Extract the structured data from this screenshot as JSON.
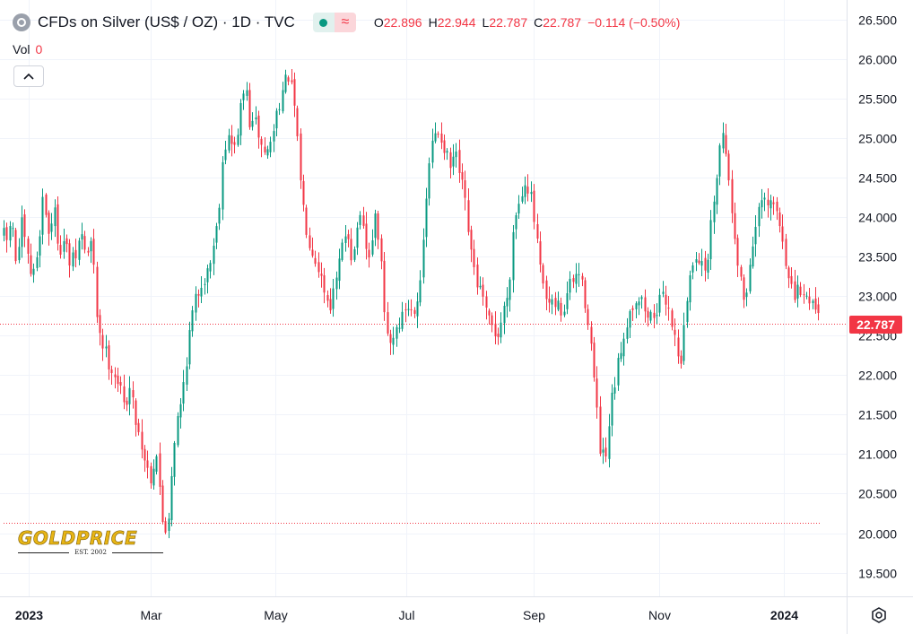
{
  "header": {
    "symbol_title": "CFDs on Silver (US$ / OZ) · 1D · TVC",
    "market_status_icon": "green-dot-icon",
    "delay_icon": "wave-icon",
    "open_label": "O",
    "open_value": "22.896",
    "high_label": "H",
    "high_value": "22.944",
    "low_label": "L",
    "low_value": "22.787",
    "close_label": "C",
    "close_value": "22.787",
    "change": "−0.114 (−0.50%)"
  },
  "volume": {
    "label": "Vol",
    "value": "0"
  },
  "collapse_icon": "chevron-up-icon",
  "logo": {
    "text": "GOLDPRICE",
    "tagline": "EST. 2002"
  },
  "price_tag": "22.787",
  "settings_icon": "gear-icon",
  "colors": {
    "up": "#089981",
    "down": "#f23645",
    "grid": "#f0f3fa",
    "text": "#131722"
  },
  "chart_data": {
    "type": "candlestick",
    "title": "CFDs on Silver (US$ / OZ) · 1D · TVC",
    "x_labels": [
      "2023",
      "Mar",
      "May",
      "Jul",
      "Sep",
      "Nov",
      "2024"
    ],
    "y_ticks": [
      "26.500",
      "26.000",
      "25.500",
      "25.000",
      "24.500",
      "24.000",
      "23.500",
      "23.000",
      "22.500",
      "22.000",
      "21.500",
      "21.000",
      "20.500",
      "20.000",
      "19.500"
    ],
    "ylim": [
      19.2,
      26.75
    ],
    "last_price": 22.787,
    "reference_level": 20.22,
    "grid": true,
    "period": "2022-12-29 to 2024-01-11 (approx.)",
    "path": [
      [
        0,
        24.1
      ],
      [
        6,
        23.6
      ],
      [
        12,
        24.0
      ],
      [
        18,
        23.4
      ],
      [
        24,
        23.9
      ],
      [
        30,
        23.5
      ],
      [
        36,
        23.2
      ],
      [
        42,
        23.6
      ],
      [
        48,
        24.3
      ],
      [
        54,
        23.8
      ],
      [
        60,
        24.1
      ],
      [
        66,
        23.6
      ],
      [
        72,
        23.7
      ],
      [
        78,
        23.4
      ],
      [
        84,
        23.5
      ],
      [
        90,
        23.8
      ],
      [
        96,
        23.5
      ],
      [
        102,
        23.7
      ],
      [
        108,
        22.7
      ],
      [
        114,
        22.4
      ],
      [
        120,
        22.2
      ],
      [
        126,
        22.05
      ],
      [
        132,
        21.9
      ],
      [
        138,
        21.6
      ],
      [
        144,
        21.85
      ],
      [
        150,
        21.5
      ],
      [
        156,
        21.2
      ],
      [
        162,
        20.9
      ],
      [
        168,
        20.7
      ],
      [
        174,
        21.05
      ],
      [
        180,
        20.2
      ],
      [
        186,
        20.0
      ],
      [
        190,
        20.6
      ],
      [
        195,
        21.3
      ],
      [
        201,
        21.6
      ],
      [
        207,
        22.15
      ],
      [
        213,
        22.7
      ],
      [
        219,
        23.0
      ],
      [
        225,
        23.2
      ],
      [
        231,
        23.3
      ],
      [
        237,
        23.6
      ],
      [
        243,
        24.0
      ],
      [
        249,
        24.9
      ],
      [
        255,
        25.0
      ],
      [
        261,
        24.85
      ],
      [
        267,
        25.3
      ],
      [
        273,
        25.7
      ],
      [
        279,
        25.1
      ],
      [
        285,
        25.2
      ],
      [
        291,
        24.9
      ],
      [
        297,
        24.8
      ],
      [
        303,
        25.0
      ],
      [
        309,
        25.4
      ],
      [
        315,
        25.6
      ],
      [
        321,
        25.8
      ],
      [
        327,
        25.5
      ],
      [
        333,
        24.7
      ],
      [
        339,
        24.0
      ],
      [
        345,
        23.7
      ],
      [
        351,
        23.5
      ],
      [
        357,
        23.3
      ],
      [
        363,
        23.0
      ],
      [
        369,
        22.9
      ],
      [
        375,
        23.2
      ],
      [
        381,
        23.6
      ],
      [
        387,
        23.9
      ],
      [
        393,
        23.4
      ],
      [
        399,
        24.0
      ],
      [
        405,
        23.8
      ],
      [
        411,
        23.4
      ],
      [
        417,
        24.0
      ],
      [
        423,
        23.7
      ],
      [
        429,
        22.6
      ],
      [
        435,
        22.4
      ],
      [
        441,
        22.6
      ],
      [
        447,
        22.7
      ],
      [
        453,
        22.9
      ],
      [
        459,
        22.8
      ],
      [
        465,
        23.0
      ],
      [
        471,
        23.5
      ],
      [
        477,
        24.6
      ],
      [
        483,
        25.0
      ],
      [
        489,
        25.1
      ],
      [
        495,
        24.9
      ],
      [
        501,
        24.6
      ],
      [
        507,
        24.8
      ],
      [
        513,
        24.5
      ],
      [
        519,
        24.1
      ],
      [
        525,
        23.5
      ],
      [
        531,
        23.2
      ],
      [
        537,
        23.0
      ],
      [
        543,
        22.7
      ],
      [
        549,
        22.6
      ],
      [
        555,
        22.5
      ],
      [
        561,
        22.8
      ],
      [
        567,
        23.1
      ],
      [
        573,
        24.0
      ],
      [
        579,
        24.2
      ],
      [
        585,
        24.5
      ],
      [
        591,
        24.3
      ],
      [
        597,
        23.8
      ],
      [
        603,
        23.2
      ],
      [
        609,
        22.9
      ],
      [
        615,
        22.85
      ],
      [
        621,
        22.9
      ],
      [
        627,
        22.75
      ],
      [
        633,
        23.1
      ],
      [
        639,
        23.2
      ],
      [
        645,
        23.3
      ],
      [
        651,
        23.0
      ],
      [
        657,
        22.6
      ],
      [
        663,
        21.8
      ],
      [
        669,
        21.0
      ],
      [
        675,
        20.9
      ],
      [
        681,
        21.6
      ],
      [
        687,
        22.0
      ],
      [
        693,
        22.4
      ],
      [
        699,
        22.7
      ],
      [
        705,
        22.9
      ],
      [
        711,
        23.0
      ],
      [
        717,
        22.9
      ],
      [
        723,
        22.7
      ],
      [
        729,
        22.8
      ],
      [
        735,
        22.9
      ],
      [
        741,
        23.0
      ],
      [
        747,
        22.8
      ],
      [
        753,
        22.4
      ],
      [
        759,
        22.2
      ],
      [
        765,
        22.9
      ],
      [
        771,
        23.4
      ],
      [
        777,
        23.6
      ],
      [
        783,
        23.3
      ],
      [
        789,
        23.5
      ],
      [
        795,
        24.2
      ],
      [
        801,
        24.8
      ],
      [
        807,
        25.2
      ],
      [
        813,
        24.3
      ],
      [
        819,
        23.8
      ],
      [
        825,
        23.2
      ],
      [
        831,
        22.9
      ],
      [
        837,
        23.6
      ],
      [
        843,
        23.9
      ],
      [
        849,
        24.2
      ],
      [
        855,
        24.1
      ],
      [
        861,
        24.2
      ],
      [
        867,
        24.0
      ],
      [
        873,
        23.7
      ],
      [
        879,
        23.2
      ],
      [
        885,
        22.95
      ],
      [
        891,
        23.1
      ],
      [
        897,
        22.95
      ],
      [
        903,
        23.0
      ],
      [
        909,
        22.85
      ],
      [
        913,
        22.787
      ]
    ],
    "open": 22.896,
    "high": 22.944,
    "low": 22.787,
    "close": 22.787,
    "change": -0.114,
    "change_percent": -0.5
  }
}
